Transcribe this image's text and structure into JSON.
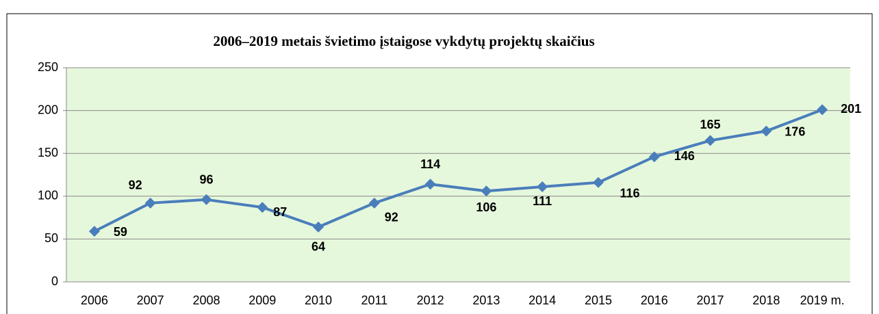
{
  "chart_data": {
    "type": "line",
    "title": "2006–2019 metais švietimo įstaigose vykdytų projektų skaičius",
    "categories": [
      "2006",
      "2007",
      "2008",
      "2009",
      "2010",
      "2011",
      "2012",
      "2013",
      "2014",
      "2015",
      "2016",
      "2017",
      "2018",
      "2019 m."
    ],
    "values": [
      59,
      92,
      96,
      87,
      64,
      92,
      114,
      106,
      111,
      116,
      146,
      165,
      176,
      201
    ],
    "color": "#4a7ebb",
    "ylim": [
      0,
      250
    ],
    "yticks": [
      0,
      50,
      100,
      150,
      200,
      250
    ],
    "grid": true
  }
}
